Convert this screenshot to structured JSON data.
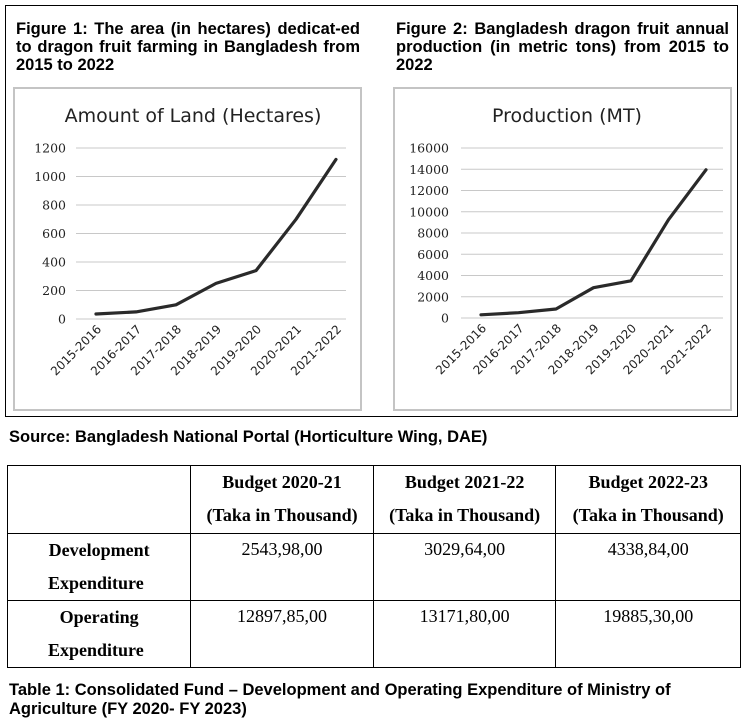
{
  "figures": {
    "figure1": {
      "caption": "Figure 1: The area (in hectares) dedicat-ed to dragon fruit farming in Bangladesh from 2015 to 2022"
    },
    "figure2": {
      "caption": "Figure 2: Bangladesh dragon fruit annual production (in metric tons) from 2015 to 2022"
    }
  },
  "chart_data": [
    {
      "type": "line",
      "title": "Amount of Land (Hectares)",
      "xlabel": "",
      "ylabel": "",
      "categories": [
        "2015-2016",
        "2016-2017",
        "2017-2018",
        "2018-2019",
        "2019-2020",
        "2020-2021",
        "2021-2022"
      ],
      "series": [
        {
          "name": "Amount of Land (Hectares)",
          "values": [
            35,
            50,
            100,
            250,
            340,
            700,
            1120
          ],
          "color": "#2a2a2a"
        }
      ],
      "yticks": [
        0,
        200,
        400,
        600,
        800,
        1000,
        1200
      ],
      "ylim": [
        0,
        1200
      ],
      "grid": true,
      "legend": "none"
    },
    {
      "type": "line",
      "title": "Production (MT)",
      "xlabel": "",
      "ylabel": "",
      "categories": [
        "2015-2016",
        "2016-2017",
        "2017-2018",
        "2018-2019",
        "2019-2020",
        "2020-2021",
        "2021-2022"
      ],
      "series": [
        {
          "name": "Production (MT)",
          "values": [
            300,
            500,
            850,
            2850,
            3500,
            9250,
            13950
          ],
          "color": "#2a2a2a"
        }
      ],
      "yticks": [
        0,
        2000,
        4000,
        6000,
        8000,
        10000,
        12000,
        14000,
        16000
      ],
      "ylim": [
        0,
        16000
      ],
      "grid": true,
      "legend": "none"
    }
  ],
  "source": "Source: Bangladesh National Portal (Horticulture Wing, DAE)",
  "table": {
    "headers": [
      {
        "line1": "",
        "line2": ""
      },
      {
        "line1": "Budget 2020-21",
        "line2": "(Taka in Thousand)"
      },
      {
        "line1": "Budget 2021-22",
        "line2": "(Taka in Thousand)"
      },
      {
        "line1": "Budget 2022-23",
        "line2": "(Taka in Thousand)"
      }
    ],
    "rows": [
      {
        "label_line1": "Development",
        "label_line2": "Expenditure",
        "values": [
          "2543,98,00",
          "3029,64,00",
          "4338,84,00"
        ]
      },
      {
        "label_line1": "Operating",
        "label_line2": "Expenditure",
        "values": [
          "12897,85,00",
          "13171,80,00",
          "19885,30,00"
        ]
      }
    ],
    "caption": "Table 1: Consolidated Fund – Development and Operating Expenditure of Ministry of Agriculture (FY 2020- FY 2023)"
  }
}
